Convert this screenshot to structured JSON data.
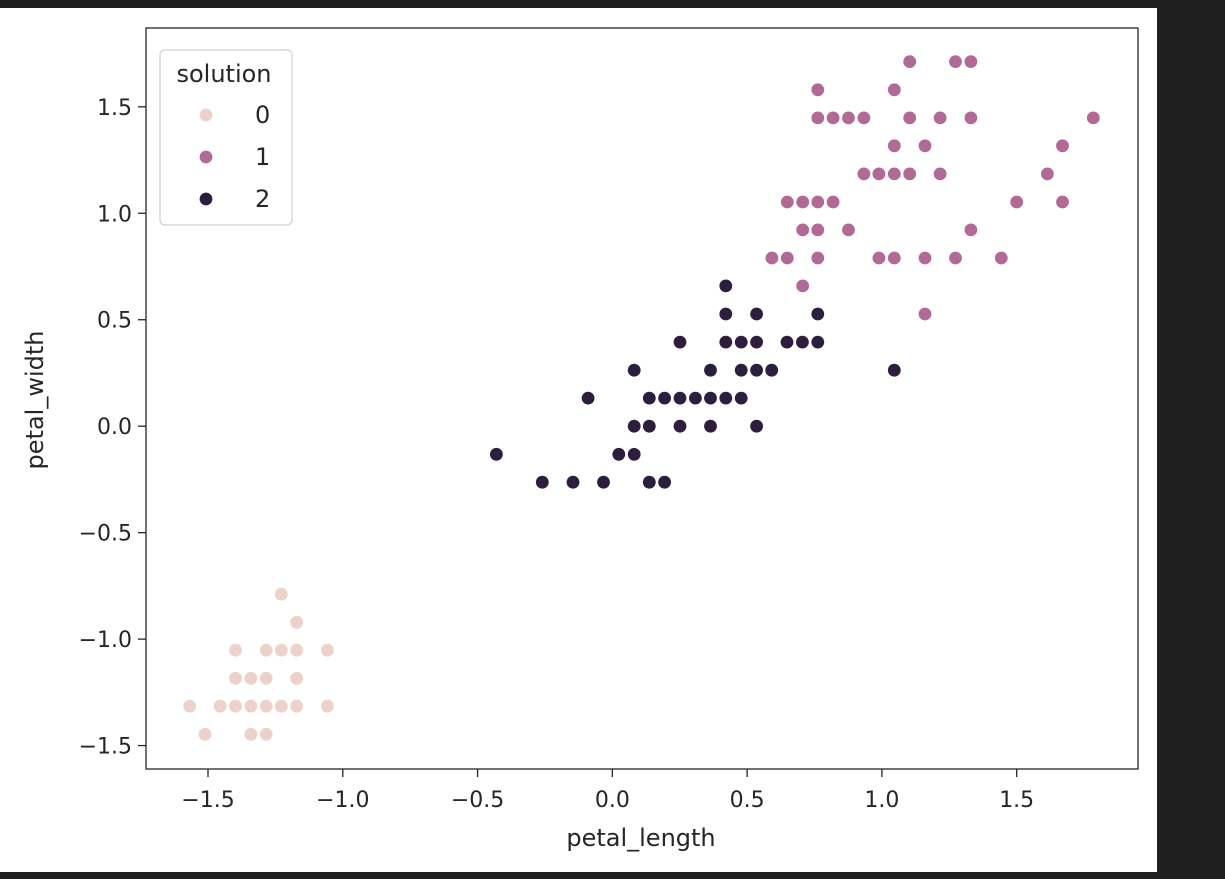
{
  "chart_data": {
    "type": "scatter",
    "title": "",
    "xlabel": "petal_length",
    "ylabel": "petal_width",
    "xlim": [
      -1.73,
      1.95
    ],
    "ylim": [
      -1.61,
      1.87
    ],
    "xticks": [
      -1.5,
      -1.0,
      -0.5,
      0.0,
      0.5,
      1.0,
      1.5
    ],
    "xtick_labels": [
      "−1.5",
      "−1.0",
      "−0.5",
      "0.0",
      "0.5",
      "1.0",
      "1.5"
    ],
    "yticks": [
      -1.5,
      -1.0,
      -0.5,
      0.0,
      0.5,
      1.0,
      1.5
    ],
    "ytick_labels": [
      "−1.5",
      "−1.0",
      "−0.5",
      "0.0",
      "0.5",
      "1.0",
      "1.5"
    ],
    "grid": false,
    "legend": {
      "title": "solution",
      "position": "top-left",
      "entries": [
        {
          "label": "0",
          "color": "#edd1cb"
        },
        {
          "label": "1",
          "color": "#b16a96"
        },
        {
          "label": "2",
          "color": "#2d1e3e"
        }
      ]
    },
    "series": [
      {
        "name": "0",
        "color": "#edd1cb",
        "points": [
          [
            -1.568,
            -1.315
          ],
          [
            -1.511,
            -1.447
          ],
          [
            -1.455,
            -1.315
          ],
          [
            -1.398,
            -1.052
          ],
          [
            -1.398,
            -1.184
          ],
          [
            -1.398,
            -1.315
          ],
          [
            -1.341,
            -1.184
          ],
          [
            -1.341,
            -1.315
          ],
          [
            -1.341,
            -1.447
          ],
          [
            -1.284,
            -1.052
          ],
          [
            -1.284,
            -1.184
          ],
          [
            -1.284,
            -1.315
          ],
          [
            -1.284,
            -1.447
          ],
          [
            -1.228,
            -0.789
          ],
          [
            -1.228,
            -1.052
          ],
          [
            -1.228,
            -1.315
          ],
          [
            -1.171,
            -0.921
          ],
          [
            -1.171,
            -1.052
          ],
          [
            -1.171,
            -1.184
          ],
          [
            -1.171,
            -1.315
          ],
          [
            -1.057,
            -1.052
          ],
          [
            -1.057,
            -1.315
          ]
        ]
      },
      {
        "name": "1",
        "color": "#b16a96",
        "points": [
          [
            0.592,
            0.79
          ],
          [
            0.649,
            0.79
          ],
          [
            0.649,
            1.053
          ],
          [
            0.706,
            0.659
          ],
          [
            0.706,
            0.922
          ],
          [
            0.706,
            1.053
          ],
          [
            0.762,
            0.79
          ],
          [
            0.762,
            0.922
          ],
          [
            0.762,
            1.053
          ],
          [
            0.762,
            1.448
          ],
          [
            0.762,
            1.58
          ],
          [
            0.819,
            1.053
          ],
          [
            0.819,
            1.448
          ],
          [
            0.876,
            0.922
          ],
          [
            0.876,
            1.448
          ],
          [
            0.933,
            1.185
          ],
          [
            0.933,
            1.448
          ],
          [
            0.989,
            0.79
          ],
          [
            0.989,
            1.185
          ],
          [
            1.046,
            0.79
          ],
          [
            1.046,
            1.185
          ],
          [
            1.046,
            1.317
          ],
          [
            1.046,
            1.58
          ],
          [
            1.103,
            1.185
          ],
          [
            1.103,
            1.448
          ],
          [
            1.103,
            1.712
          ],
          [
            1.16,
            0.527
          ],
          [
            1.16,
            0.79
          ],
          [
            1.16,
            1.317
          ],
          [
            1.216,
            1.185
          ],
          [
            1.216,
            1.448
          ],
          [
            1.273,
            0.79
          ],
          [
            1.273,
            1.712
          ],
          [
            1.33,
            0.922
          ],
          [
            1.33,
            1.448
          ],
          [
            1.33,
            1.712
          ],
          [
            1.443,
            0.79
          ],
          [
            1.5,
            1.053
          ],
          [
            1.614,
            1.185
          ],
          [
            1.67,
            1.053
          ],
          [
            1.67,
            1.317
          ],
          [
            1.784,
            1.448
          ]
        ]
      },
      {
        "name": "2",
        "color": "#2d1e3e",
        "points": [
          [
            -0.43,
            -0.132
          ],
          [
            -0.26,
            -0.263
          ],
          [
            -0.146,
            -0.263
          ],
          [
            -0.09,
            0.132
          ],
          [
            -0.033,
            -0.263
          ],
          [
            0.024,
            -0.132
          ],
          [
            0.081,
            -0.132
          ],
          [
            0.081,
            0.0
          ],
          [
            0.081,
            0.263
          ],
          [
            0.137,
            -0.263
          ],
          [
            0.137,
            0.0
          ],
          [
            0.137,
            0.132
          ],
          [
            0.194,
            -0.263
          ],
          [
            0.194,
            0.132
          ],
          [
            0.251,
            0.0
          ],
          [
            0.251,
            0.132
          ],
          [
            0.251,
            0.395
          ],
          [
            0.308,
            0.132
          ],
          [
            0.364,
            0.0
          ],
          [
            0.364,
            0.132
          ],
          [
            0.364,
            0.263
          ],
          [
            0.421,
            0.132
          ],
          [
            0.421,
            0.395
          ],
          [
            0.421,
            0.527
          ],
          [
            0.421,
            0.659
          ],
          [
            0.478,
            0.132
          ],
          [
            0.478,
            0.263
          ],
          [
            0.478,
            0.395
          ],
          [
            0.535,
            0.0
          ],
          [
            0.535,
            0.263
          ],
          [
            0.535,
            0.395
          ],
          [
            0.535,
            0.527
          ],
          [
            0.591,
            0.263
          ],
          [
            0.648,
            0.395
          ],
          [
            0.705,
            0.395
          ],
          [
            0.762,
            0.395
          ],
          [
            0.762,
            0.527
          ],
          [
            1.046,
            0.263
          ]
        ]
      }
    ]
  }
}
